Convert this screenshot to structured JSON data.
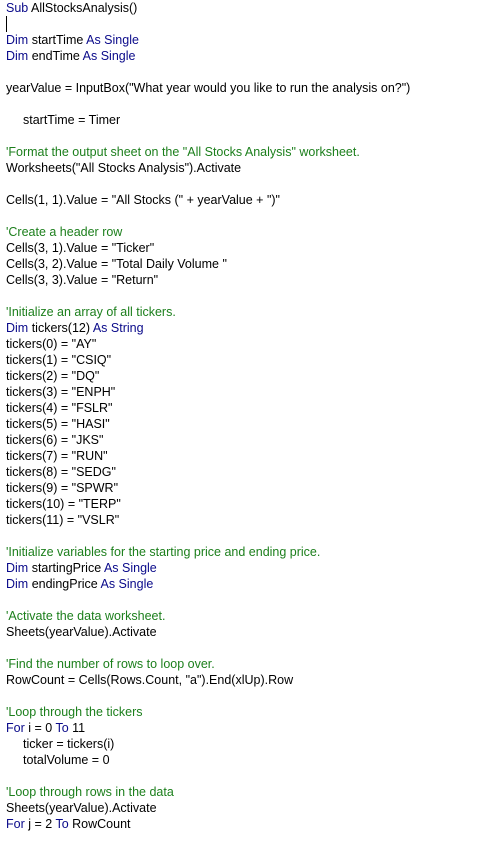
{
  "lines": [
    {
      "parts": [
        {
          "t": "kw",
          "v": "Sub"
        },
        {
          "t": "tx",
          "v": " AllStocksAnalysis()"
        }
      ]
    },
    {
      "parts": []
    },
    {
      "parts": [
        {
          "t": "kw",
          "v": "Dim"
        },
        {
          "t": "tx",
          "v": " startTime "
        },
        {
          "t": "kw",
          "v": "As Single"
        }
      ]
    },
    {
      "parts": [
        {
          "t": "kw",
          "v": "Dim"
        },
        {
          "t": "tx",
          "v": " endTime "
        },
        {
          "t": "kw",
          "v": "As Single"
        }
      ]
    },
    {
      "parts": []
    },
    {
      "parts": [
        {
          "t": "tx",
          "v": "yearValue = InputBox(\"What year would you like to run the analysis on?\")"
        }
      ]
    },
    {
      "parts": []
    },
    {
      "indent": true,
      "parts": [
        {
          "t": "tx",
          "v": "startTime = Timer"
        }
      ]
    },
    {
      "parts": []
    },
    {
      "parts": [
        {
          "t": "cm",
          "v": "'Format the output sheet on the \"All Stocks Analysis\" worksheet."
        }
      ]
    },
    {
      "parts": [
        {
          "t": "tx",
          "v": "Worksheets(\"All Stocks Analysis\").Activate"
        }
      ]
    },
    {
      "parts": []
    },
    {
      "parts": [
        {
          "t": "tx",
          "v": "Cells(1, 1).Value = \"All Stocks (\" + yearValue + \")\""
        }
      ]
    },
    {
      "parts": []
    },
    {
      "parts": [
        {
          "t": "cm",
          "v": "'Create a header row"
        }
      ]
    },
    {
      "parts": [
        {
          "t": "tx",
          "v": "Cells(3, 1).Value = \"Ticker\""
        }
      ]
    },
    {
      "parts": [
        {
          "t": "tx",
          "v": "Cells(3, 2).Value = \"Total Daily Volume \""
        }
      ]
    },
    {
      "parts": [
        {
          "t": "tx",
          "v": "Cells(3, 3).Value = \"Return\""
        }
      ]
    },
    {
      "parts": []
    },
    {
      "parts": [
        {
          "t": "cm",
          "v": "'Initialize an array of all tickers."
        }
      ]
    },
    {
      "parts": [
        {
          "t": "kw",
          "v": "Dim"
        },
        {
          "t": "tx",
          "v": " tickers(12) "
        },
        {
          "t": "kw",
          "v": "As String"
        }
      ]
    },
    {
      "parts": [
        {
          "t": "tx",
          "v": "tickers(0) = \"AY\""
        }
      ]
    },
    {
      "parts": [
        {
          "t": "tx",
          "v": "tickers(1) = \"CSIQ\""
        }
      ]
    },
    {
      "parts": [
        {
          "t": "tx",
          "v": "tickers(2) = \"DQ\""
        }
      ]
    },
    {
      "parts": [
        {
          "t": "tx",
          "v": "tickers(3) = \"ENPH\""
        }
      ]
    },
    {
      "parts": [
        {
          "t": "tx",
          "v": "tickers(4) = \"FSLR\""
        }
      ]
    },
    {
      "parts": [
        {
          "t": "tx",
          "v": "tickers(5) = \"HASI\""
        }
      ]
    },
    {
      "parts": [
        {
          "t": "tx",
          "v": "tickers(6) = \"JKS\""
        }
      ]
    },
    {
      "parts": [
        {
          "t": "tx",
          "v": "tickers(7) = \"RUN\""
        }
      ]
    },
    {
      "parts": [
        {
          "t": "tx",
          "v": "tickers(8) = \"SEDG\""
        }
      ]
    },
    {
      "parts": [
        {
          "t": "tx",
          "v": "tickers(9) = \"SPWR\""
        }
      ]
    },
    {
      "parts": [
        {
          "t": "tx",
          "v": "tickers(10) = \"TERP\""
        }
      ]
    },
    {
      "parts": [
        {
          "t": "tx",
          "v": "tickers(11) = \"VSLR\""
        }
      ]
    },
    {
      "parts": []
    },
    {
      "parts": [
        {
          "t": "cm",
          "v": "'Initialize variables for the starting price and ending price."
        }
      ]
    },
    {
      "parts": [
        {
          "t": "kw",
          "v": "Dim"
        },
        {
          "t": "tx",
          "v": " startingPrice "
        },
        {
          "t": "kw",
          "v": "As Single"
        }
      ]
    },
    {
      "parts": [
        {
          "t": "kw",
          "v": "Dim"
        },
        {
          "t": "tx",
          "v": " endingPrice "
        },
        {
          "t": "kw",
          "v": "As Single"
        }
      ]
    },
    {
      "parts": []
    },
    {
      "parts": [
        {
          "t": "cm",
          "v": "'Activate the data worksheet."
        }
      ]
    },
    {
      "parts": [
        {
          "t": "tx",
          "v": "Sheets(yearValue).Activate"
        }
      ]
    },
    {
      "parts": []
    },
    {
      "parts": [
        {
          "t": "cm",
          "v": "'Find the number of rows to loop over."
        }
      ]
    },
    {
      "parts": [
        {
          "t": "tx",
          "v": "RowCount = Cells(Rows.Count, \"a\").End(xlUp).Row"
        }
      ]
    },
    {
      "parts": []
    },
    {
      "parts": [
        {
          "t": "cm",
          "v": "'Loop through the tickers"
        }
      ]
    },
    {
      "parts": [
        {
          "t": "kw",
          "v": "For"
        },
        {
          "t": "tx",
          "v": " i = 0 "
        },
        {
          "t": "kw",
          "v": "To"
        },
        {
          "t": "tx",
          "v": " 11"
        }
      ]
    },
    {
      "indent": true,
      "parts": [
        {
          "t": "tx",
          "v": "ticker = tickers(i)"
        }
      ]
    },
    {
      "indent": true,
      "parts": [
        {
          "t": "tx",
          "v": "totalVolume = 0"
        }
      ]
    },
    {
      "parts": []
    },
    {
      "parts": [
        {
          "t": "cm",
          "v": "'Loop through rows in the data"
        }
      ]
    },
    {
      "parts": [
        {
          "t": "tx",
          "v": "Sheets(yearValue).Activate"
        }
      ]
    },
    {
      "parts": [
        {
          "t": "kw",
          "v": "For"
        },
        {
          "t": "tx",
          "v": " j = 2 "
        },
        {
          "t": "kw",
          "v": "To"
        },
        {
          "t": "tx",
          "v": " RowCount"
        }
      ]
    }
  ]
}
